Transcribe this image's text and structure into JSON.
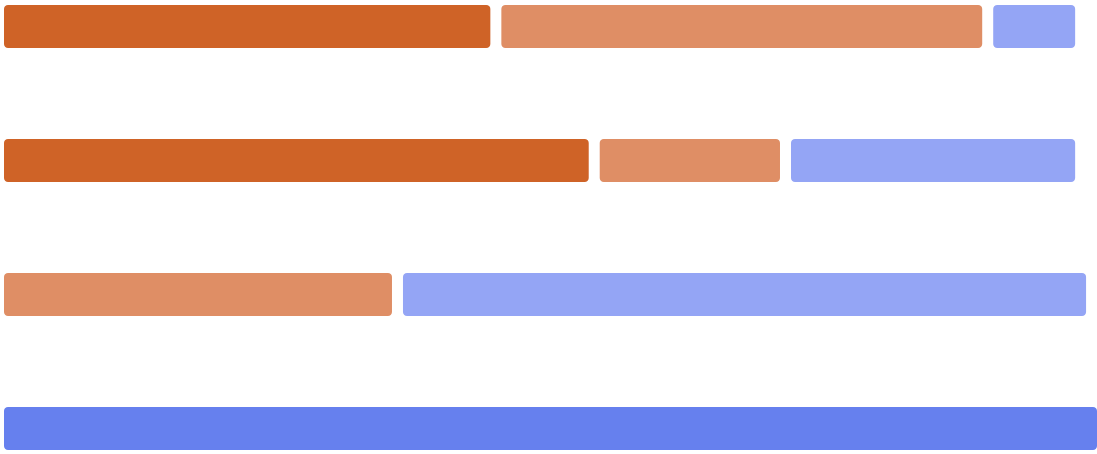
{
  "chart_data": {
    "type": "bar",
    "orientation": "horizontal",
    "stacked": true,
    "categories": [
      "",
      "",
      "",
      ""
    ],
    "series": [
      {
        "values": [
          45,
          54,
          0,
          0
        ],
        "color": "#CF6327"
      },
      {
        "values": [
          45,
          17.5,
          36,
          0
        ],
        "color": "#DF8E65"
      },
      {
        "values": [
          8,
          26.5,
          63,
          0
        ],
        "color": "#94A5F5"
      },
      {
        "values": [
          0,
          0,
          0,
          100
        ],
        "color": "#6680EE"
      }
    ],
    "xlim": [
      0,
      100
    ],
    "grid": false,
    "legend": "none",
    "title": "",
    "xlabel": "",
    "ylabel": ""
  }
}
